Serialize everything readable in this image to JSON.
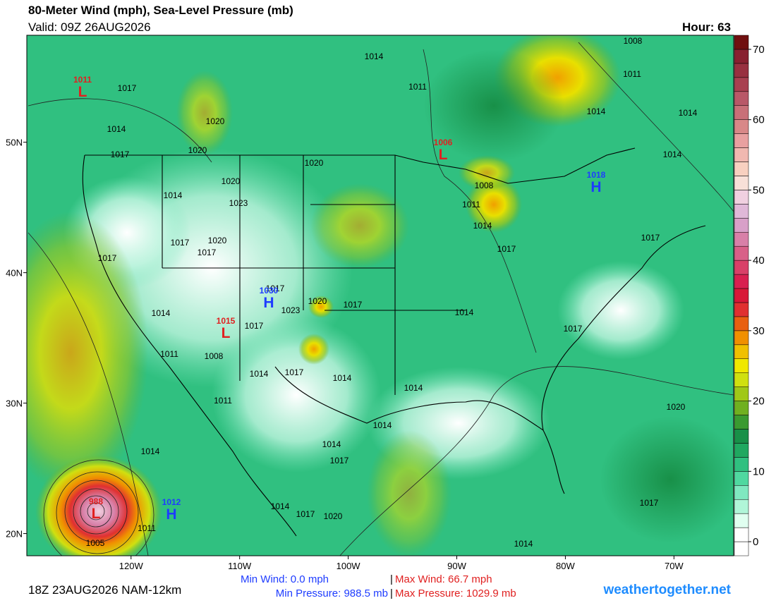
{
  "header": {
    "title": "80-Meter Wind (mph), Sea-Level Pressure (mb)",
    "valid": "Valid: 09Z 26AUG2026",
    "hour": "Hour: 63"
  },
  "map": {
    "xlim": [
      -129.6,
      -64.5
    ],
    "ylim": [
      18.3,
      58.2
    ],
    "xticks": [
      {
        "value": -120,
        "label": "120W"
      },
      {
        "value": -110,
        "label": "110W"
      },
      {
        "value": -100,
        "label": "100W"
      },
      {
        "value": -90,
        "label": "90W"
      },
      {
        "value": -80,
        "label": "80W"
      },
      {
        "value": -70,
        "label": "70W"
      }
    ],
    "yticks": [
      {
        "value": 20,
        "label": "20N"
      },
      {
        "value": 30,
        "label": "30N"
      },
      {
        "value": 40,
        "label": "40N"
      },
      {
        "value": 50,
        "label": "50N"
      }
    ],
    "isobar_labels": [
      1017,
      1014,
      1017,
      1020,
      1020,
      1020,
      1014,
      1023,
      1017,
      1017,
      1020,
      1017,
      1014,
      1011,
      1008,
      1017,
      1017,
      1023,
      1020,
      1017,
      1014,
      1017,
      1014,
      1011,
      1014,
      1011,
      1005,
      1020,
      1014,
      1011,
      1008,
      1011,
      1014,
      1017,
      1008,
      1011,
      1014,
      1014,
      1014,
      1017,
      1017,
      1014,
      1014,
      1014,
      1014,
      1017,
      1020,
      1017,
      1014,
      1014,
      1017,
      1020
    ],
    "centers": [
      {
        "letter": "L",
        "pressure": 1011
      },
      {
        "letter": "L",
        "pressure": 1006
      },
      {
        "letter": "H",
        "pressure": 1018
      },
      {
        "letter": "H",
        "pressure": 1030
      },
      {
        "letter": "L",
        "pressure": 1015
      },
      {
        "letter": "L",
        "pressure": 988
      },
      {
        "letter": "H",
        "pressure": 1012
      }
    ]
  },
  "colorbar": {
    "range": [
      -2,
      72
    ],
    "ticks": [
      0,
      10,
      20,
      30,
      40,
      50,
      60,
      70
    ],
    "colors": [
      "#ffffff",
      "#ffffff",
      "#e0fff0",
      "#b0f5d8",
      "#80e8c0",
      "#50d8a0",
      "#30c080",
      "#20a860",
      "#189048",
      "#3a9a30",
      "#70b020",
      "#a0c818",
      "#d0e010",
      "#f0e800",
      "#f0c000",
      "#f09000",
      "#e86010",
      "#e03030",
      "#d81838",
      "#d82050",
      "#d84068",
      "#d86088",
      "#d880a8",
      "#d8a0c8",
      "#e0b8d8",
      "#f0d0e0",
      "#f8e0d8",
      "#f8d0c0",
      "#f0b8b0",
      "#e8a0a0",
      "#d88888",
      "#c87078",
      "#b85868",
      "#a84050",
      "#983040",
      "#882030",
      "#701010"
    ]
  },
  "footer": {
    "run": "18Z 23AUG2026 NAM-12km",
    "min_wind": "Min Wind:  0.0 mph",
    "max_wind": "Max Wind: 66.7 mph",
    "min_pressure": "Min Pressure: 988.5 mb",
    "max_pressure": "Max Pressure: 1029.9 mb",
    "separator": "|",
    "site": "weathertogether.net"
  }
}
